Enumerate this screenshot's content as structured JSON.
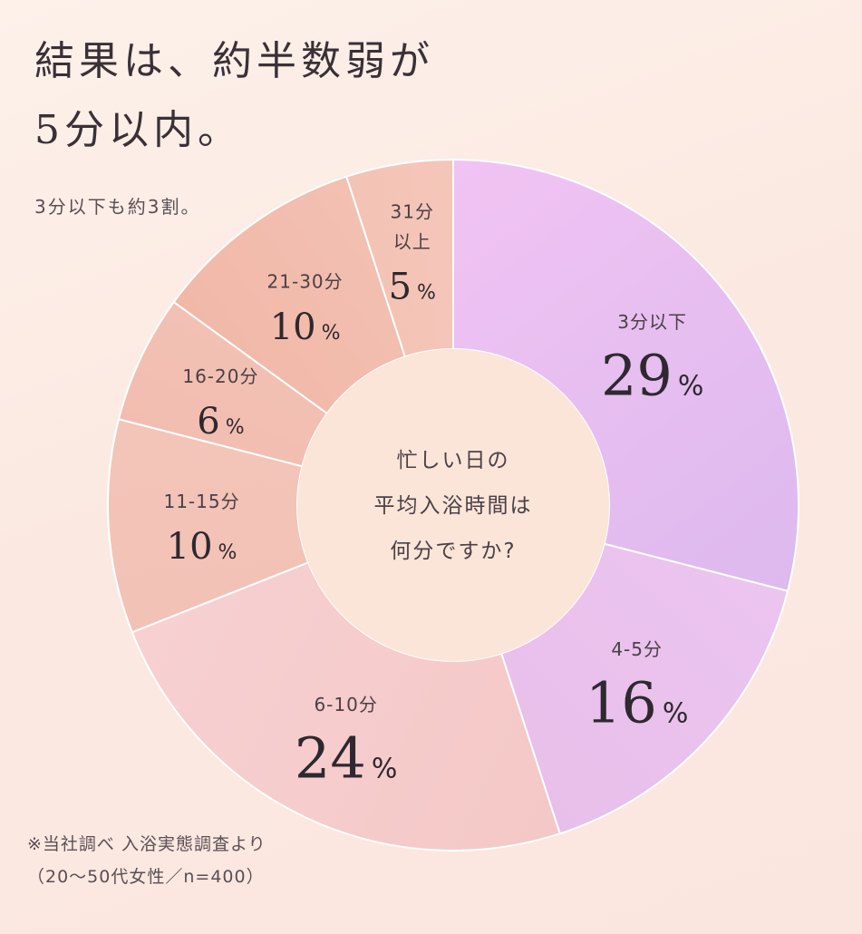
{
  "title_lines": [
    "結果は、約半数弱が",
    "5分以内。"
  ],
  "subtitle": "3分以下も約3割。",
  "note_lines": [
    "※当社調べ 入浴実態調査より",
    "（20〜50代女性／n=400）"
  ],
  "chart_data": {
    "type": "pie",
    "center_text": [
      "忙しい日の",
      "平均入浴時間は",
      "何分ですか?"
    ],
    "unit": "%",
    "categories": [
      "3分以下",
      "4-5分",
      "6-10分",
      "11-15分",
      "16-20分",
      "21-30分",
      "31分以上"
    ],
    "values": [
      29,
      16,
      24,
      10,
      6,
      10,
      5
    ],
    "label_lines": [
      [
        "3分以下"
      ],
      [
        "4-5分"
      ],
      [
        "6-10分"
      ],
      [
        "11-15分"
      ],
      [
        "16-20分"
      ],
      [
        "21-30分"
      ],
      [
        "31分",
        "以上"
      ]
    ],
    "colors": [
      [
        "#f1c3f3",
        "#ddb9ee"
      ],
      [
        "#ecc4f0",
        "#e7bfe9"
      ],
      [
        "#f4c8c6",
        "#f7d0d2"
      ],
      [
        "#f3c2b6",
        "#f3c4b8"
      ],
      [
        "#f2bdb0",
        "#f2c1b4"
      ],
      [
        "#f1b8a8",
        "#f3c0b2"
      ],
      [
        "#f3c3b5",
        "#f4c6b9"
      ]
    ],
    "center_color": "#fbe5d9",
    "separator_color": "#ffffff"
  }
}
